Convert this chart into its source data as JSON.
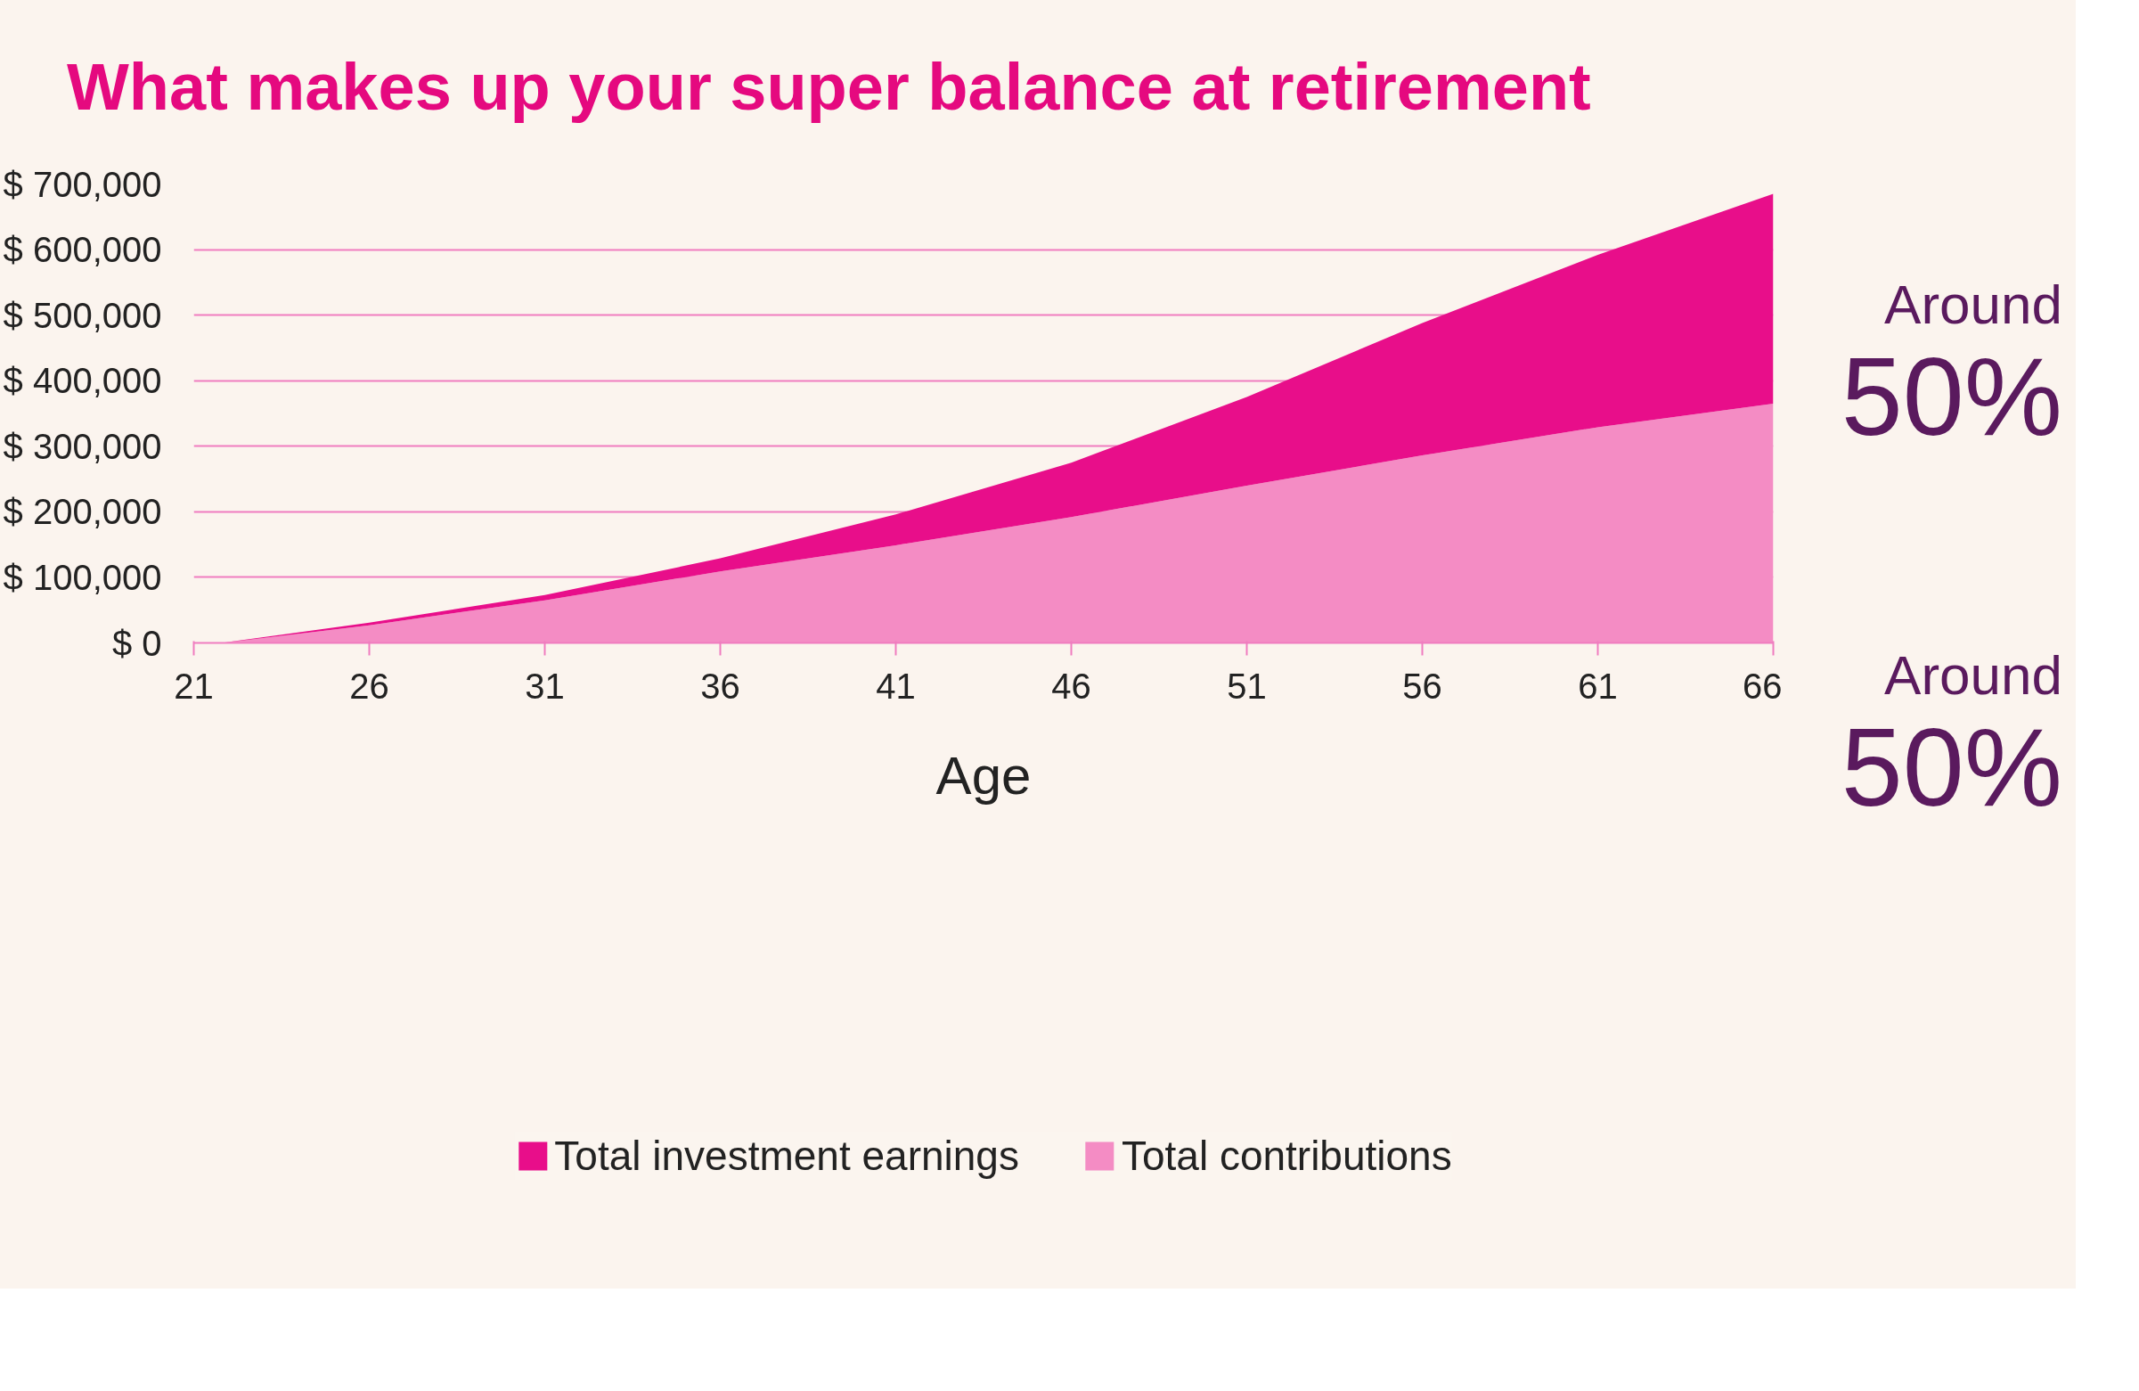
{
  "chart_data": {
    "type": "area",
    "stacked": true,
    "title": "What makes up your super balance at retirement",
    "xlabel": "Age",
    "x": [
      21.8,
      26,
      31,
      36,
      41,
      46,
      51,
      56,
      61,
      66
    ],
    "series": [
      {
        "name": "Total contributions",
        "color": "#f48cc4",
        "values": [
          0,
          27000,
          65000,
          109000,
          149000,
          192000,
          240000,
          286000,
          329000,
          365000
        ]
      },
      {
        "name": "Total investment earnings",
        "color": "#e80e8a",
        "values": [
          0,
          4000,
          8000,
          20000,
          47000,
          83000,
          135000,
          202000,
          263000,
          320000
        ]
      }
    ],
    "xlim": [
      21,
      66
    ],
    "ylim": [
      0,
      700000
    ],
    "xticks": [
      21,
      26,
      31,
      36,
      41,
      46,
      51,
      56,
      61,
      66
    ],
    "yticks": [
      {
        "value": 0,
        "label": "$ 0"
      },
      {
        "value": 100000,
        "label": "$ 100,000"
      },
      {
        "value": 200000,
        "label": "$ 200,000"
      },
      {
        "value": 300000,
        "label": "$ 300,000"
      },
      {
        "value": 400000,
        "label": "$ 400,000"
      },
      {
        "value": 500000,
        "label": "$ 500,000"
      },
      {
        "value": 600000,
        "label": "$ 600,000"
      },
      {
        "value": 700000,
        "label": "$ 700,000"
      }
    ],
    "grid": "y",
    "legend": "bottom",
    "annotations": [
      "Around",
      "50%",
      "Around",
      "50%"
    ]
  }
}
